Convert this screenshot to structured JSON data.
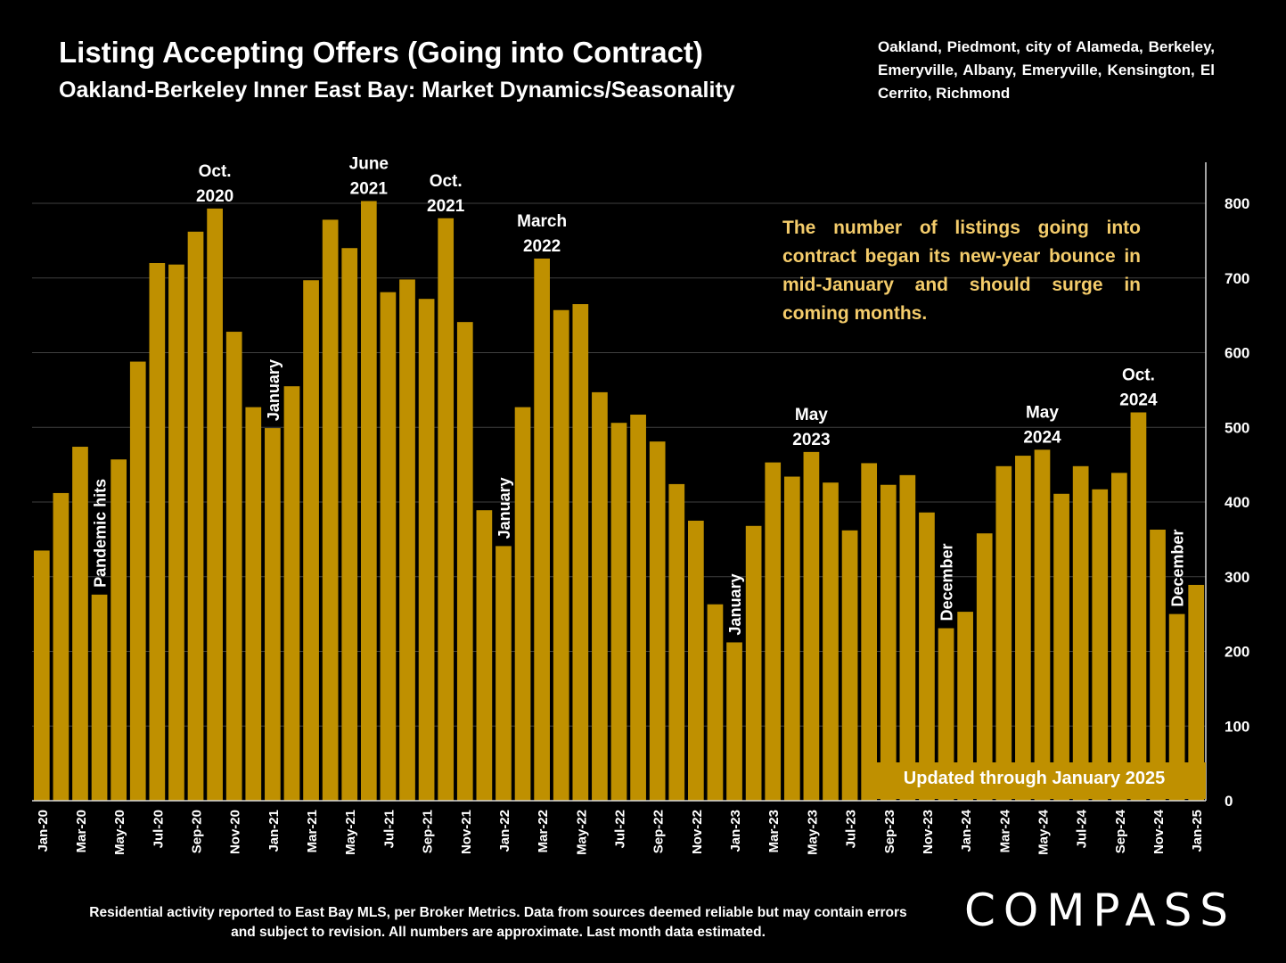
{
  "header": {
    "title": "Listing Accepting Offers (Going into Contract)",
    "subtitle": "Oakland-Berkeley Inner East Bay: Market Dynamics/Seasonality",
    "cities": "Oakland, Piedmont, city of Alameda, Berkeley, Emeryville, Albany, Emeryville, Kensington, El Cerrito, Richmond"
  },
  "callout": "The number of listings going into contract began its new-year bounce in mid-January and should surge in coming months.",
  "updated_label": "Updated through January 2025",
  "footnote": "Residential activity reported to East Bay MLS, per Broker Metrics. Data from sources deemed reliable but may contain errors and subject to revision. All numbers are approximate. Last month data estimated.",
  "brand": "COMPASS",
  "colors": {
    "bar": "#bf9000",
    "background": "#000000",
    "callout_text": "#f4cc6b",
    "gridline": "#404040"
  },
  "chart_data": {
    "type": "bar",
    "title": "Listing Accepting Offers (Going into Contract)",
    "subtitle": "Oakland-Berkeley Inner East Bay: Market Dynamics/Seasonality",
    "xlabel": "",
    "ylabel": "",
    "ylim": [
      0,
      800
    ],
    "y_axis_side": "right",
    "yticks": [
      0,
      100,
      200,
      300,
      400,
      500,
      600,
      700,
      800
    ],
    "grid": true,
    "categories": [
      "Jan-20",
      "Feb-20",
      "Mar-20",
      "Apr-20",
      "May-20",
      "Jun-20",
      "Jul-20",
      "Aug-20",
      "Sep-20",
      "Oct-20",
      "Nov-20",
      "Dec-20",
      "Jan-21",
      "Feb-21",
      "Mar-21",
      "Apr-21",
      "May-21",
      "Jun-21",
      "Jul-21",
      "Aug-21",
      "Sep-21",
      "Oct-21",
      "Nov-21",
      "Dec-21",
      "Jan-22",
      "Feb-22",
      "Mar-22",
      "Apr-22",
      "May-22",
      "Jun-22",
      "Jul-22",
      "Aug-22",
      "Sep-22",
      "Oct-22",
      "Nov-22",
      "Dec-22",
      "Jan-23",
      "Feb-23",
      "Mar-23",
      "Apr-23",
      "May-23",
      "Jun-23",
      "Jul-23",
      "Aug-23",
      "Sep-23",
      "Oct-23",
      "Nov-23",
      "Dec-23",
      "Jan-24",
      "Feb-24",
      "Mar-24",
      "Apr-24",
      "May-24",
      "Jun-24",
      "Jul-24",
      "Aug-24",
      "Sep-24",
      "Oct-24",
      "Nov-24",
      "Dec-24",
      "Jan-25"
    ],
    "tick_labels": [
      "Jan-20",
      "Mar-20",
      "May-20",
      "Jul-20",
      "Sep-20",
      "Nov-20",
      "Jan-21",
      "Mar-21",
      "May-21",
      "Jul-21",
      "Sep-21",
      "Nov-21",
      "Jan-22",
      "Mar-22",
      "May-22",
      "Jul-22",
      "Sep-22",
      "Nov-22",
      "Jan-23",
      "Mar-23",
      "May-23",
      "Jul-23",
      "Sep-23",
      "Nov-23",
      "Jan-24",
      "Mar-24",
      "May-24",
      "Jul-24",
      "Sep-24",
      "Nov-24",
      "Jan-25"
    ],
    "values": [
      335,
      412,
      474,
      276,
      457,
      588,
      720,
      718,
      762,
      793,
      628,
      527,
      499,
      555,
      697,
      778,
      740,
      803,
      681,
      698,
      672,
      780,
      641,
      389,
      341,
      527,
      726,
      657,
      665,
      547,
      506,
      517,
      481,
      424,
      375,
      263,
      212,
      368,
      453,
      434,
      467,
      426,
      362,
      452,
      423,
      436,
      386,
      231,
      253,
      358,
      448,
      462,
      470,
      411,
      448,
      417,
      439,
      520,
      363,
      250,
      289
    ],
    "annotations": [
      {
        "index": 3,
        "text": "Pandemic hits",
        "orientation": "vertical"
      },
      {
        "index": 9,
        "text": "Oct.\n2020",
        "orientation": "horizontal"
      },
      {
        "index": 12,
        "text": "January",
        "orientation": "vertical"
      },
      {
        "index": 17,
        "text": "June\n2021",
        "orientation": "horizontal"
      },
      {
        "index": 21,
        "text": "Oct.\n2021",
        "orientation": "horizontal"
      },
      {
        "index": 24,
        "text": "January",
        "orientation": "vertical"
      },
      {
        "index": 26,
        "text": "March\n2022",
        "orientation": "horizontal"
      },
      {
        "index": 36,
        "text": "January",
        "orientation": "vertical"
      },
      {
        "index": 40,
        "text": "May\n2023",
        "orientation": "horizontal"
      },
      {
        "index": 47,
        "text": "December",
        "orientation": "vertical"
      },
      {
        "index": 52,
        "text": "May\n2024",
        "orientation": "horizontal"
      },
      {
        "index": 57,
        "text": "Oct.\n2024",
        "orientation": "horizontal"
      },
      {
        "index": 59,
        "text": "December",
        "orientation": "vertical"
      }
    ]
  }
}
